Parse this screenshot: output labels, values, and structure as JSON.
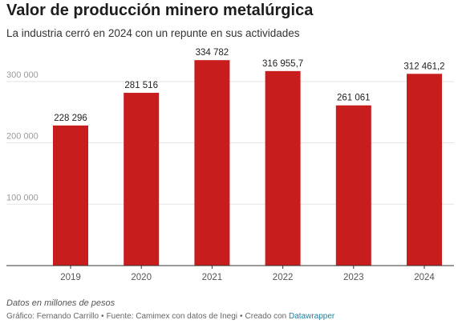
{
  "header": {
    "title": "Valor de producción minero metalúrgica",
    "subtitle": "La industria cerró en 2024 con un repunte en sus actividades"
  },
  "chart_data": {
    "type": "bar",
    "categories": [
      "2019",
      "2020",
      "2021",
      "2022",
      "2023",
      "2024"
    ],
    "values": [
      228296,
      281516,
      334782,
      316955.7,
      261061,
      312461.2
    ],
    "value_labels": [
      "228 296",
      "281 516",
      "334 782",
      "316 955,7",
      "261 061",
      "312 461,2"
    ],
    "yticks": [
      100000,
      200000,
      300000
    ],
    "ytick_labels": [
      "100 000",
      "200 000",
      "300 000"
    ],
    "ylim": [
      0,
      335000
    ],
    "grid": true,
    "bar_color": "#c71e1d"
  },
  "notes": "Datos en millones de pesos",
  "footer": {
    "byline": "Gráfico: Fernando Carrillo",
    "source": "Fuente: Camimex con datos de Inegi",
    "created_with": "Creado con",
    "tool": "Datawrapper"
  }
}
